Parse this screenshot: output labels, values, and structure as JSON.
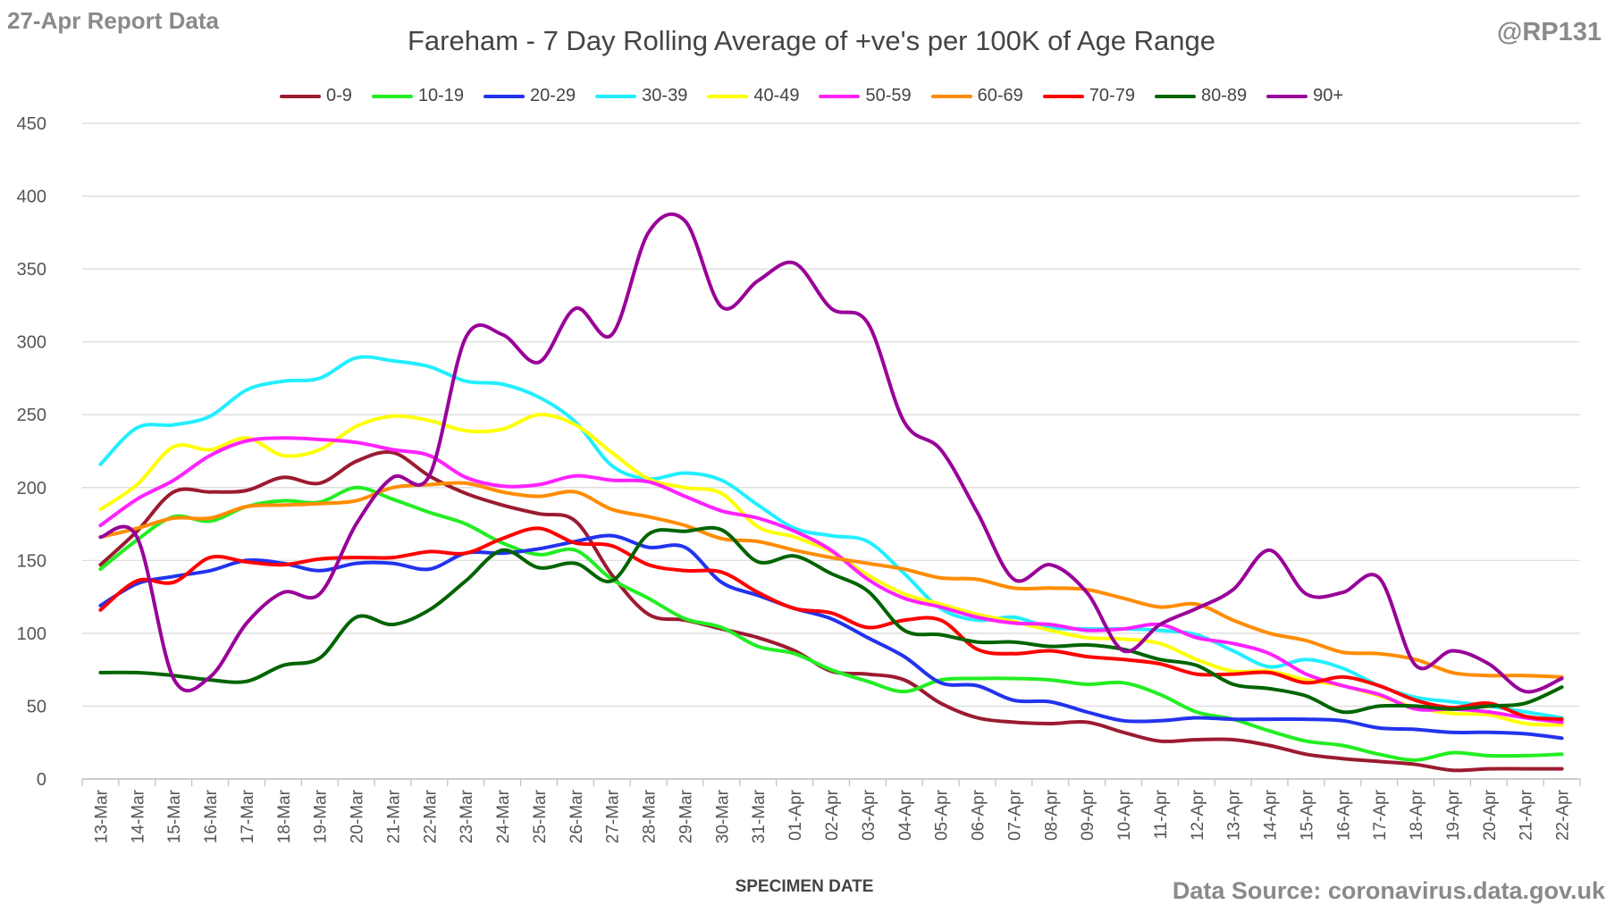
{
  "header": {
    "report_label": "27-Apr Report Data",
    "handle": "@RP131",
    "source": "Data Source: coronavirus.data.gov.uk"
  },
  "chart_data": {
    "type": "line",
    "title": "Fareham - 7 Day Rolling Average of +ve's per 100K of Age Range",
    "xlabel": "SPECIMEN DATE",
    "ylabel": "",
    "ylim": [
      0,
      450
    ],
    "yticks": [
      0,
      50,
      100,
      150,
      200,
      250,
      300,
      350,
      400,
      450
    ],
    "grid": true,
    "legend_position": "top",
    "categories": [
      "13-Mar",
      "14-Mar",
      "15-Mar",
      "16-Mar",
      "17-Mar",
      "18-Mar",
      "19-Mar",
      "20-Mar",
      "21-Mar",
      "22-Mar",
      "23-Mar",
      "24-Mar",
      "25-Mar",
      "26-Mar",
      "27-Mar",
      "28-Mar",
      "29-Mar",
      "30-Mar",
      "31-Mar",
      "01-Apr",
      "02-Apr",
      "03-Apr",
      "04-Apr",
      "05-Apr",
      "06-Apr",
      "07-Apr",
      "08-Apr",
      "09-Apr",
      "10-Apr",
      "11-Apr",
      "12-Apr",
      "13-Apr",
      "14-Apr",
      "15-Apr",
      "16-Apr",
      "17-Apr",
      "18-Apr",
      "19-Apr",
      "20-Apr",
      "21-Apr",
      "22-Apr"
    ],
    "series": [
      {
        "name": "0-9",
        "color": "#9b1b30",
        "values": [
          147,
          170,
          197,
          197,
          198,
          207,
          203,
          218,
          224,
          208,
          196,
          188,
          182,
          177,
          140,
          113,
          109,
          103,
          97,
          88,
          74,
          72,
          68,
          52,
          42,
          39,
          38,
          39,
          32,
          26,
          27,
          27,
          23,
          17,
          14,
          12,
          10,
          6,
          7,
          7,
          7
        ]
      },
      {
        "name": "10-19",
        "color": "#22ee22",
        "values": [
          144,
          164,
          180,
          177,
          187,
          191,
          190,
          200,
          192,
          183,
          175,
          162,
          154,
          157,
          137,
          124,
          110,
          104,
          91,
          86,
          75,
          67,
          60,
          68,
          69,
          69,
          68,
          65,
          66,
          58,
          46,
          41,
          33,
          26,
          23,
          17,
          13,
          18,
          16,
          16,
          17
        ]
      },
      {
        "name": "20-29",
        "color": "#2233ee",
        "values": [
          119,
          134,
          139,
          143,
          150,
          148,
          143,
          148,
          148,
          144,
          155,
          155,
          158,
          163,
          167,
          159,
          159,
          135,
          126,
          117,
          110,
          97,
          84,
          66,
          64,
          54,
          53,
          46,
          40,
          40,
          42,
          41,
          41,
          41,
          40,
          35,
          34,
          32,
          32,
          31,
          28
        ]
      },
      {
        "name": "30-39",
        "color": "#22eeff",
        "values": [
          216,
          241,
          243,
          249,
          267,
          273,
          275,
          289,
          287,
          283,
          273,
          271,
          262,
          245,
          215,
          206,
          210,
          205,
          188,
          172,
          167,
          163,
          141,
          117,
          109,
          111,
          104,
          103,
          103,
          102,
          99,
          88,
          77,
          82,
          76,
          64,
          56,
          53,
          50,
          46,
          42
        ]
      },
      {
        "name": "40-49",
        "color": "#ffff00",
        "values": [
          185,
          202,
          228,
          226,
          234,
          222,
          226,
          242,
          249,
          246,
          239,
          240,
          250,
          243,
          224,
          206,
          200,
          196,
          173,
          166,
          156,
          140,
          127,
          120,
          113,
          108,
          102,
          97,
          96,
          93,
          82,
          74,
          74,
          68,
          64,
          57,
          49,
          45,
          44,
          38,
          37
        ]
      },
      {
        "name": "50-59",
        "color": "#ff22ff",
        "values": [
          174,
          192,
          205,
          222,
          232,
          234,
          233,
          231,
          226,
          222,
          207,
          201,
          202,
          208,
          205,
          204,
          194,
          184,
          179,
          170,
          157,
          137,
          124,
          118,
          111,
          107,
          106,
          102,
          103,
          106,
          97,
          93,
          86,
          72,
          64,
          58,
          48,
          48,
          46,
          42,
          39
        ]
      },
      {
        "name": "60-69",
        "color": "#ff8c00",
        "values": [
          166,
          172,
          179,
          179,
          187,
          188,
          189,
          191,
          200,
          202,
          203,
          197,
          194,
          197,
          185,
          180,
          174,
          165,
          163,
          157,
          152,
          148,
          144,
          138,
          137,
          131,
          131,
          130,
          124,
          118,
          120,
          109,
          100,
          95,
          87,
          86,
          82,
          73,
          71,
          71,
          70
        ]
      },
      {
        "name": "70-79",
        "color": "#ff0000",
        "values": [
          116,
          136,
          135,
          152,
          149,
          147,
          151,
          152,
          152,
          156,
          155,
          165,
          172,
          162,
          160,
          147,
          143,
          142,
          128,
          117,
          114,
          104,
          109,
          109,
          89,
          86,
          88,
          84,
          82,
          79,
          72,
          72,
          73,
          66,
          70,
          64,
          54,
          49,
          52,
          43,
          41
        ]
      },
      {
        "name": "80-89",
        "color": "#006400",
        "values": [
          73,
          73,
          71,
          68,
          67,
          78,
          83,
          111,
          106,
          116,
          136,
          157,
          145,
          148,
          136,
          168,
          170,
          171,
          149,
          153,
          141,
          129,
          102,
          99,
          94,
          94,
          91,
          92,
          89,
          82,
          78,
          65,
          62,
          57,
          46,
          50,
          50,
          48,
          50,
          52,
          63
        ]
      },
      {
        "name": "90+",
        "color": "#990099",
        "values": [
          166,
          166,
          69,
          70,
          107,
          128,
          127,
          175,
          207,
          208,
          303,
          305,
          286,
          323,
          305,
          375,
          383,
          324,
          342,
          354,
          323,
          313,
          245,
          226,
          183,
          137,
          147,
          128,
          88,
          106,
          117,
          130,
          157,
          127,
          128,
          138,
          78,
          88,
          79,
          60,
          69
        ]
      }
    ]
  }
}
